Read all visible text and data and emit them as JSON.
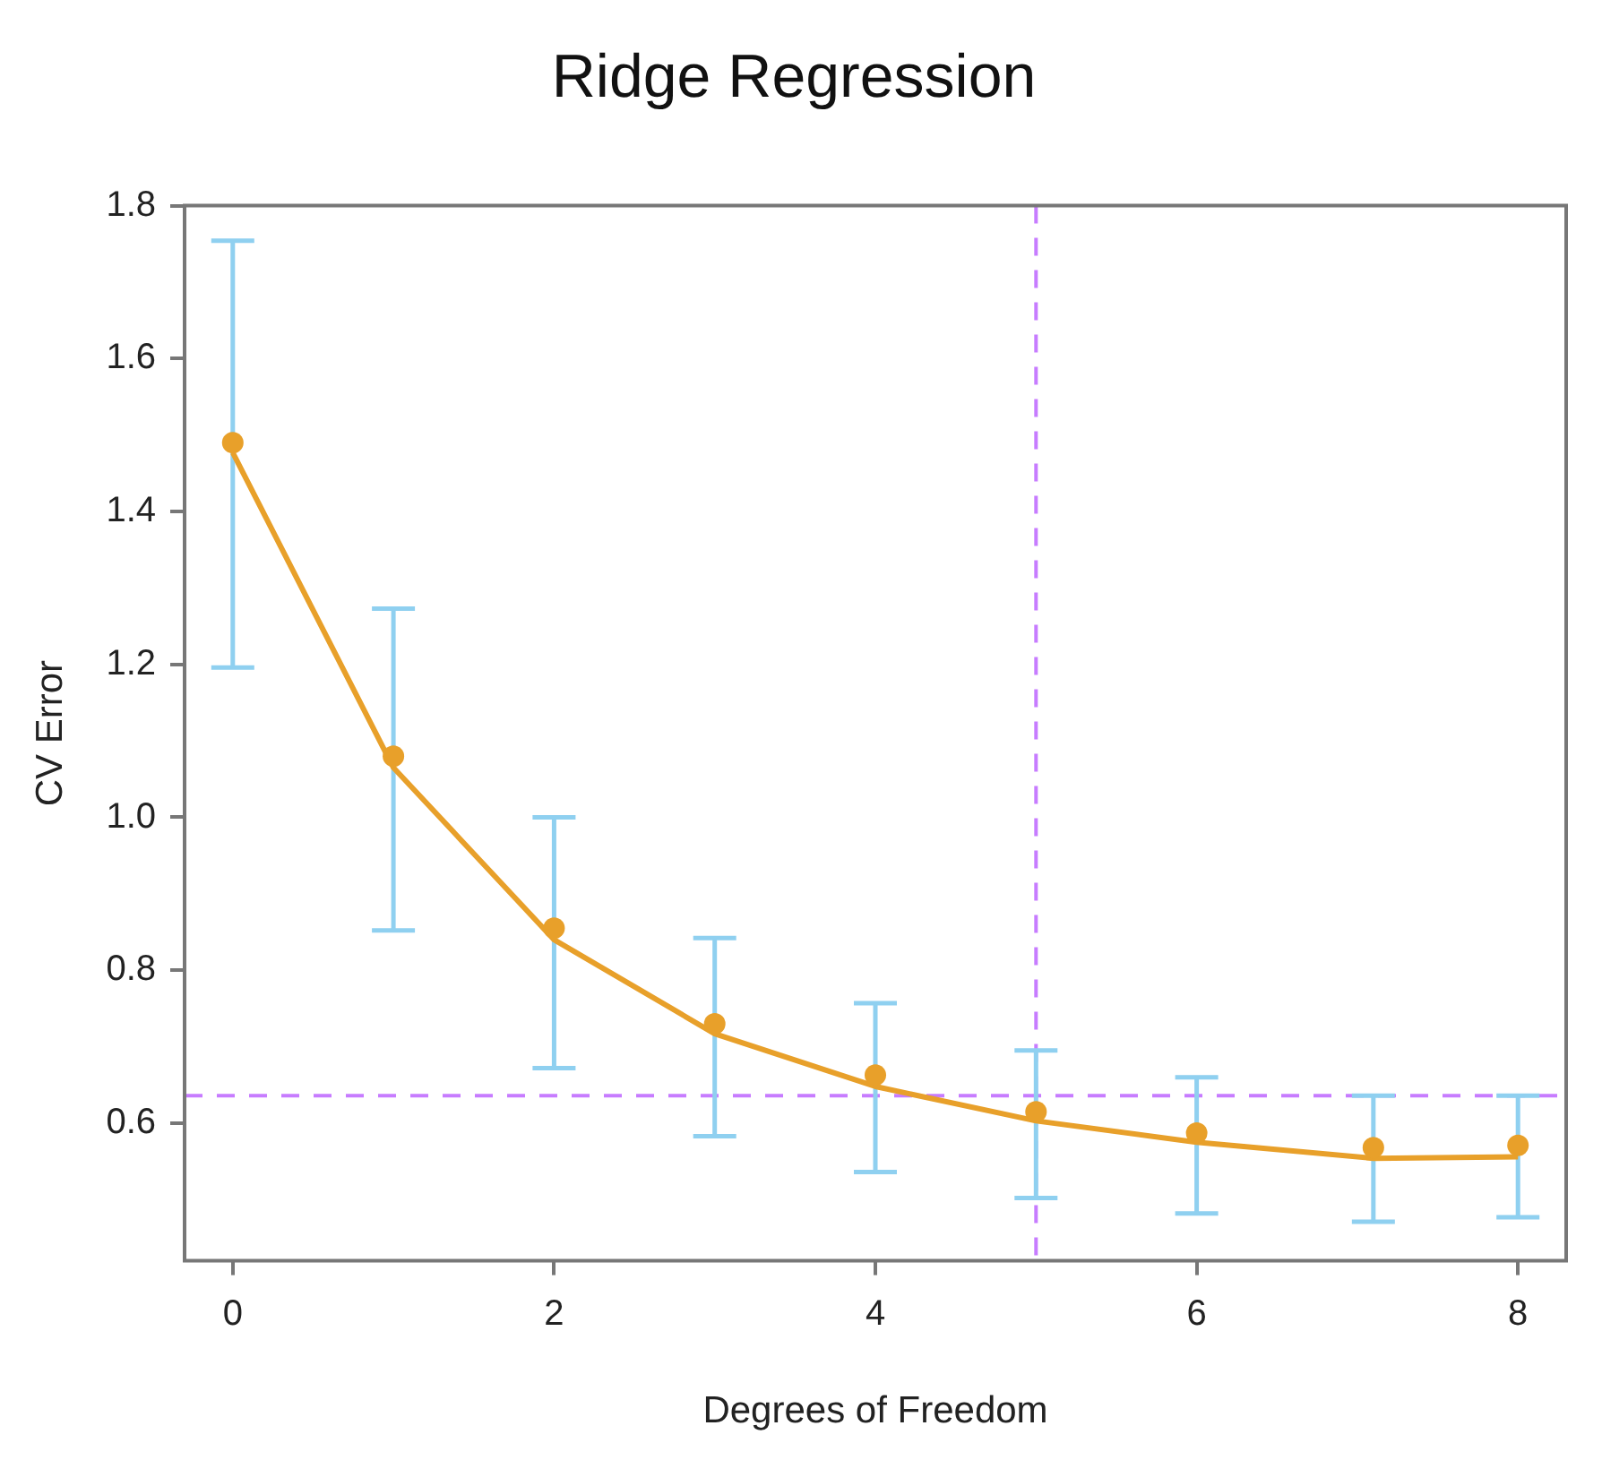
{
  "chart_data": {
    "type": "scatter",
    "title": "Ridge Regression",
    "xlabel": "Degrees of Freedom",
    "ylabel": "CV Error",
    "xlim": [
      -0.3,
      8.3
    ],
    "xticks": [
      0,
      2,
      4,
      6,
      8
    ],
    "ylim": [
      0.42,
      1.8
    ],
    "yticks": [
      {
        "value": 0.6,
        "label": "0.6"
      },
      {
        "value": 0.8,
        "label": "0.8"
      },
      {
        "value": 1,
        "label": "1.0"
      },
      {
        "value": 1.2,
        "label": "1.2"
      },
      {
        "value": 1.4,
        "label": "1.4"
      },
      {
        "value": 1.6,
        "label": "1.6"
      },
      {
        "value": 1.8,
        "label": "1.8"
      }
    ],
    "series": [
      {
        "type": "scatter",
        "color": "#e8a02a",
        "marker": "circle",
        "x": [
          0,
          1,
          2,
          3,
          4,
          5,
          6,
          7.1,
          8
        ],
        "values": [
          1.49,
          1.08,
          0.855,
          0.73,
          0.663,
          0.615,
          0.587,
          0.568,
          0.571
        ],
        "errors": [
          [
            1.196,
            1.754
          ],
          [
            0.852,
            1.273
          ],
          [
            0.672,
            1.0
          ],
          [
            0.583,
            0.842
          ],
          [
            0.536,
            0.757
          ],
          [
            0.502,
            0.695
          ],
          [
            0.482,
            0.66
          ],
          [
            0.471,
            0.636
          ],
          [
            0.477,
            0.636
          ]
        ]
      },
      {
        "type": "line",
        "color": "#e8a02a",
        "marker": "none",
        "x": [
          0,
          1,
          2,
          3,
          4,
          5,
          6,
          7.1,
          8
        ],
        "values": [
          1.477,
          1.065,
          0.84,
          0.717,
          0.648,
          0.603,
          0.575,
          0.554,
          0.556
        ]
      }
    ],
    "ref_lines": [
      {
        "axis": "y",
        "value": 0.636,
        "color": "#c77cff",
        "line_style": "dashed"
      },
      {
        "axis": "x",
        "value": 5,
        "color": "#c77cff",
        "line_style": "dashed"
      }
    ]
  }
}
